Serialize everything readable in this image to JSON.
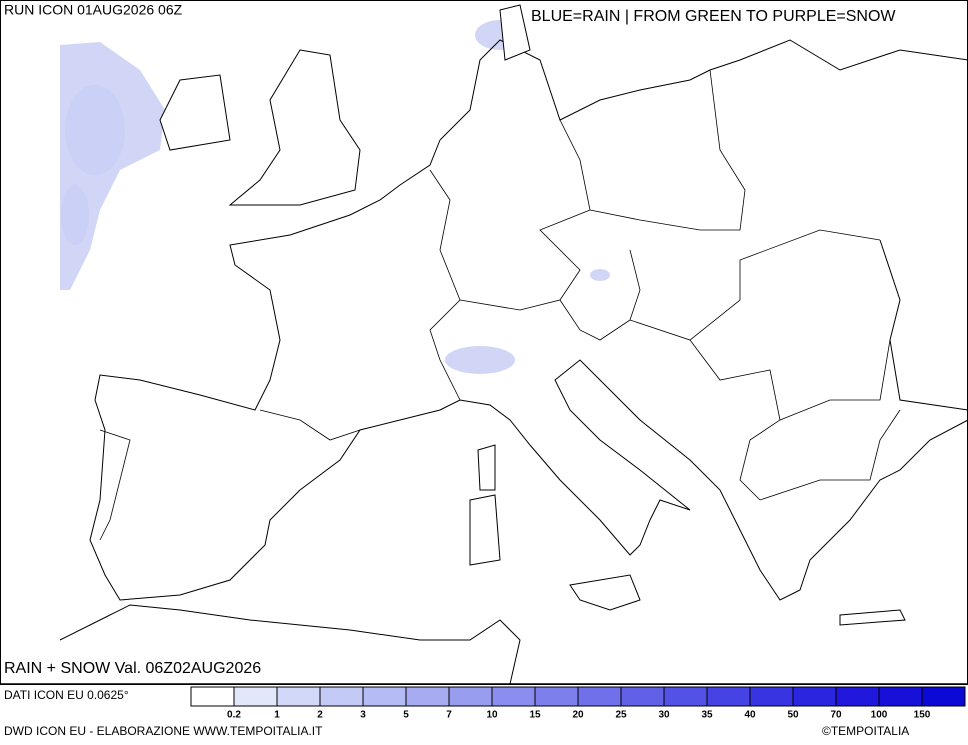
{
  "header": {
    "run": "RUN ICON 01AUG2026 06Z",
    "legend_note": "BLUE=RAIN | FROM GREEN TO PURPLE=SNOW"
  },
  "map": {
    "valid": "RAIN + SNOW Val. 06Z02AUG2026"
  },
  "footer": {
    "source": "DATI ICON EU 0.0625°",
    "credit": "DWD ICON EU - ELABORAZIONE WWW.TEMPOITALIA.IT",
    "copyright": "©TEMPOITALIA"
  },
  "colorbar": {
    "colors": [
      "#ffffff",
      "#e2e7fa",
      "#d2d9f8",
      "#c4caf6",
      "#b5bbf4",
      "#a7acf2",
      "#999df0",
      "#8b8eee",
      "#7d7fec",
      "#6f70ea",
      "#6161e8",
      "#5352e6",
      "#4543e4",
      "#3734e2",
      "#2a26e0",
      "#2019dd",
      "#1610d9",
      "#0c08d5"
    ],
    "labels": [
      0.2,
      1,
      2,
      3,
      5,
      7,
      10,
      15,
      20,
      25,
      30,
      35,
      40,
      50,
      70,
      100,
      150
    ]
  }
}
